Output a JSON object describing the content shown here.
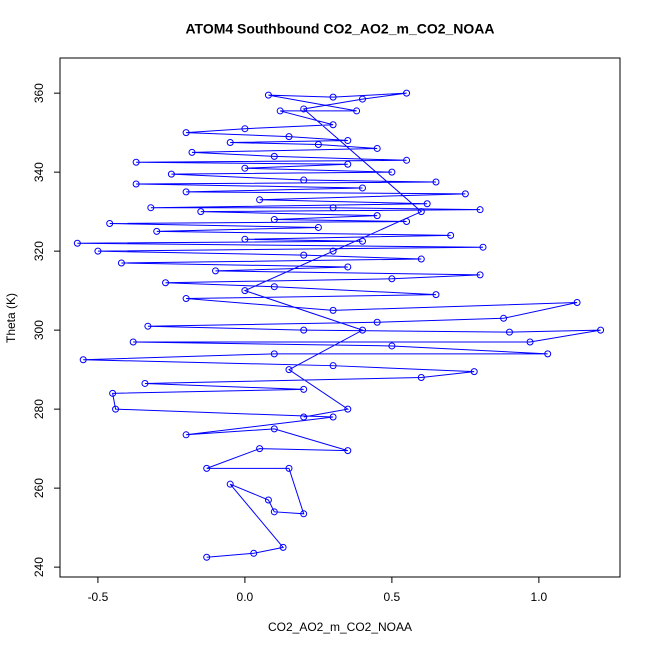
{
  "chart_data": {
    "type": "line",
    "markers": true,
    "title": "ATOM4 Southbound CO2_AO2_m_CO2_NOAA",
    "x_label": "CO2_AO2_m_CO2_NOAA",
    "y_label": "Theta (K)",
    "color": "#0000ff",
    "xlim": [
      -0.629,
      1.276
    ],
    "ylim": [
      237.5,
      368.9
    ],
    "xticks": [
      -0.5,
      {
        "value": 0,
        "label": "0.0"
      },
      0.5,
      {
        "value": 1,
        "label": "1.0"
      }
    ],
    "yticks": [
      240,
      260,
      280,
      300,
      320,
      340,
      360
    ],
    "x": [
      -0.13,
      0.03,
      0.13,
      -0.05,
      0.08,
      0.1,
      0.2,
      0.15,
      -0.13,
      0.05,
      0.35,
      0.1,
      -0.2,
      0.3,
      -0.44,
      -0.45,
      0.2,
      -0.34,
      0.6,
      0.78,
      0.3,
      -0.55,
      0.1,
      1.03,
      0.5,
      -0.38,
      0.97,
      1.21,
      0.9,
      0.2,
      -0.33,
      0.45,
      0.88,
      1.13,
      0.3,
      -0.2,
      0.65,
      0.1,
      -0.27,
      0.5,
      0.8,
      -0.1,
      0.35,
      -0.42,
      0.6,
      0.2,
      -0.5,
      0.81,
      -0.57,
      0.4,
      0.0,
      0.7,
      -0.3,
      0.25,
      -0.46,
      0.55,
      0.1,
      0.45,
      -0.15,
      0.8,
      0.3,
      -0.32,
      0.62,
      0.05,
      0.75,
      -0.2,
      0.4,
      -0.37,
      0.65,
      0.2,
      -0.25,
      0.5,
      0.0,
      0.35,
      -0.37,
      0.55,
      0.1,
      -0.18,
      0.45,
      0.25,
      -0.05,
      0.35,
      0.15,
      -0.2,
      0.0,
      0.3,
      0.12,
      0.38,
      0.08,
      0.3,
      0.55,
      0.4,
      0.2,
      0.6,
      0.3,
      0.0,
      0.4,
      0.15,
      0.35,
      0.2
    ],
    "values": [
      242.5,
      243.5,
      245,
      261,
      257,
      254,
      253.5,
      265,
      265,
      270,
      269.5,
      275,
      273.5,
      278,
      280,
      284,
      285,
      286.5,
      288,
      289.5,
      291,
      292.5,
      294,
      294,
      296,
      297,
      297,
      300,
      299.5,
      300,
      301,
      302,
      303,
      307,
      305,
      308,
      309,
      311,
      312,
      313,
      314,
      315,
      316,
      317,
      318,
      319,
      320,
      321,
      322,
      322.5,
      323,
      324,
      325,
      326,
      327,
      327.5,
      328,
      329,
      330,
      330.5,
      331,
      331,
      332,
      333,
      334.5,
      335,
      336,
      337,
      337.5,
      338,
      339.5,
      340,
      341,
      342,
      342.5,
      343,
      344,
      345,
      346,
      347,
      347.5,
      348,
      349,
      350,
      351,
      352,
      355.5,
      355.5,
      359.5,
      359,
      360,
      358.5,
      356,
      330,
      320,
      310,
      300,
      290,
      280,
      278
    ]
  }
}
